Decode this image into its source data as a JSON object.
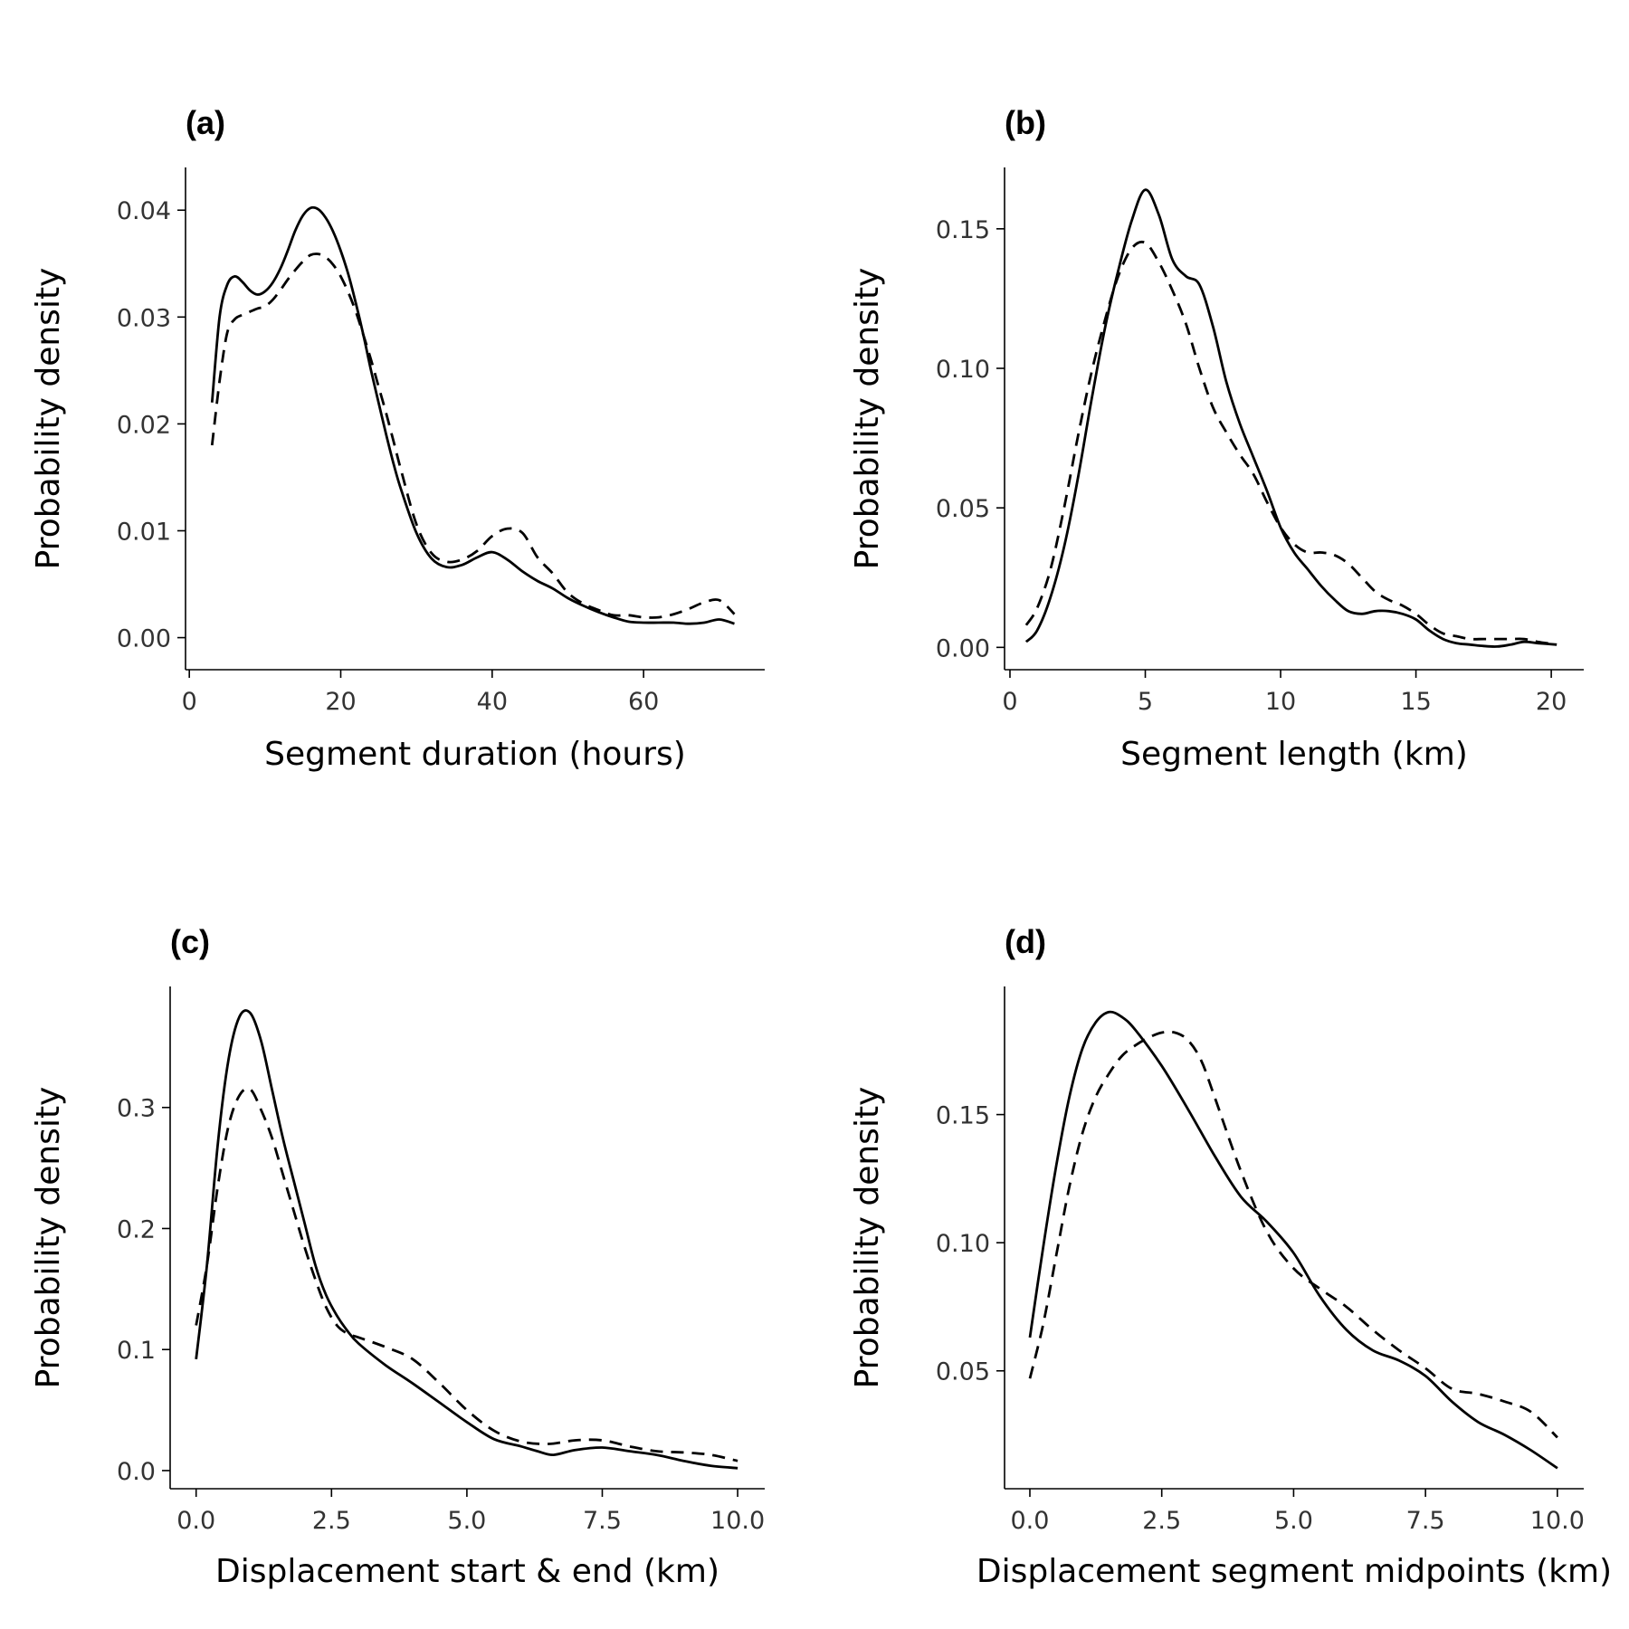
{
  "chart_data": [
    {
      "type": "line",
      "panel_label": "(a)",
      "xlabel": "Segment duration (hours)",
      "ylabel": "Probability density",
      "xlim": [
        -0.5,
        76
      ],
      "ylim": [
        -0.003,
        0.044
      ],
      "xticks": [
        0,
        20,
        40,
        60
      ],
      "xtick_labels": [
        "0",
        "20",
        "40",
        "60"
      ],
      "yticks": [
        0,
        0.01,
        0.02,
        0.03,
        0.04
      ],
      "ytick_labels": [
        "0.00",
        "0.01",
        "0.02",
        "0.03",
        "0.04"
      ],
      "legend": "none",
      "grid": false,
      "series": [
        {
          "style": "solid",
          "x": [
            3,
            4,
            5,
            6,
            7,
            8,
            9,
            10,
            11,
            12,
            13,
            14,
            15,
            16,
            17,
            18,
            19,
            20,
            21,
            22,
            23,
            24,
            25,
            26,
            27,
            28,
            30,
            32,
            34,
            36,
            38,
            40,
            42,
            44,
            46,
            48,
            50,
            52,
            54,
            56,
            58,
            60,
            62,
            64,
            66,
            68,
            70,
            72
          ],
          "y": [
            0.022,
            0.03,
            0.033,
            0.0338,
            0.0333,
            0.0325,
            0.0321,
            0.0324,
            0.0332,
            0.0345,
            0.0362,
            0.0381,
            0.0395,
            0.0402,
            0.0401,
            0.0393,
            0.038,
            0.0362,
            0.034,
            0.0313,
            0.0283,
            0.025,
            0.022,
            0.019,
            0.0162,
            0.0138,
            0.0098,
            0.0074,
            0.0066,
            0.0068,
            0.0075,
            0.008,
            0.0073,
            0.0062,
            0.0053,
            0.0046,
            0.0037,
            0.003,
            0.0024,
            0.0019,
            0.0015,
            0.0014,
            0.0014,
            0.0014,
            0.0013,
            0.0014,
            0.0017,
            0.0013
          ]
        },
        {
          "style": "dashed",
          "x": [
            3,
            4,
            5,
            6,
            7,
            8,
            9,
            10,
            11,
            12,
            13,
            14,
            15,
            16,
            17,
            18,
            19,
            20,
            21,
            22,
            23,
            24,
            25,
            26,
            27,
            28,
            30,
            32,
            34,
            36,
            38,
            40,
            42,
            44,
            46,
            48,
            50,
            52,
            54,
            56,
            58,
            60,
            62,
            64,
            66,
            68,
            70,
            72
          ],
          "y": [
            0.018,
            0.024,
            0.0285,
            0.0298,
            0.0302,
            0.0305,
            0.0308,
            0.031,
            0.0316,
            0.0325,
            0.0335,
            0.0344,
            0.0352,
            0.0358,
            0.0359,
            0.0356,
            0.0349,
            0.0338,
            0.0323,
            0.0305,
            0.0283,
            0.026,
            0.0235,
            0.021,
            0.0183,
            0.0156,
            0.0106,
            0.0079,
            0.0071,
            0.0073,
            0.0081,
            0.0095,
            0.0102,
            0.0098,
            0.0075,
            0.006,
            0.0042,
            0.0032,
            0.0026,
            0.0021,
            0.0021,
            0.0019,
            0.0019,
            0.0022,
            0.0027,
            0.0033,
            0.0035,
            0.0022
          ]
        }
      ]
    },
    {
      "type": "line",
      "panel_label": "(b)",
      "xlabel": "Segment length (km)",
      "ylabel": "Probability density",
      "xlim": [
        -0.2,
        21.2
      ],
      "ylim": [
        -0.008,
        0.172
      ],
      "xticks": [
        0,
        5,
        10,
        15,
        20
      ],
      "xtick_labels": [
        "0",
        "5",
        "10",
        "15",
        "20"
      ],
      "yticks": [
        0,
        0.05,
        0.1,
        0.15
      ],
      "ytick_labels": [
        "0.00",
        "0.05",
        "0.10",
        "0.15"
      ],
      "legend": "none",
      "grid": false,
      "series": [
        {
          "style": "solid",
          "x": [
            0.6,
            1,
            1.5,
            2,
            2.5,
            3,
            3.5,
            4,
            4.5,
            5,
            5.5,
            6,
            6.5,
            7,
            7.5,
            8,
            8.5,
            9,
            9.5,
            10,
            10.5,
            11,
            11.5,
            12,
            12.5,
            13,
            13.5,
            14,
            14.5,
            15,
            15.5,
            16,
            16.5,
            17,
            17.5,
            18,
            18.5,
            19,
            19.5,
            20.2
          ],
          "y": [
            0.002,
            0.006,
            0.018,
            0.036,
            0.06,
            0.088,
            0.114,
            0.135,
            0.153,
            0.164,
            0.155,
            0.139,
            0.133,
            0.13,
            0.115,
            0.095,
            0.08,
            0.068,
            0.056,
            0.043,
            0.034,
            0.028,
            0.022,
            0.017,
            0.013,
            0.012,
            0.013,
            0.013,
            0.012,
            0.01,
            0.006,
            0.003,
            0.0015,
            0.001,
            0.0005,
            0.0003,
            0.001,
            0.002,
            0.0015,
            0.001
          ]
        },
        {
          "style": "dashed",
          "x": [
            0.6,
            1,
            1.5,
            2,
            2.5,
            3,
            3.5,
            4,
            4.5,
            5,
            5.5,
            6,
            6.5,
            7,
            7.5,
            8,
            8.5,
            9,
            9.5,
            10,
            10.5,
            11,
            11.5,
            12,
            12.5,
            13,
            13.5,
            14,
            14.5,
            15,
            15.5,
            16,
            16.5,
            17,
            17.5,
            18,
            18.5,
            19,
            19.5,
            20.2
          ],
          "y": [
            0.008,
            0.014,
            0.028,
            0.05,
            0.075,
            0.098,
            0.117,
            0.133,
            0.143,
            0.145,
            0.138,
            0.128,
            0.116,
            0.1,
            0.086,
            0.077,
            0.069,
            0.062,
            0.052,
            0.043,
            0.037,
            0.034,
            0.034,
            0.033,
            0.03,
            0.025,
            0.02,
            0.017,
            0.015,
            0.012,
            0.008,
            0.005,
            0.004,
            0.003,
            0.003,
            0.003,
            0.003,
            0.003,
            0.002,
            0.001
          ]
        }
      ]
    },
    {
      "type": "line",
      "panel_label": "(c)",
      "xlabel": "Displacement start & end (km)",
      "ylabel": "Probability density",
      "xlim": [
        -0.48,
        10.5
      ],
      "ylim": [
        -0.015,
        0.4
      ],
      "xticks": [
        0,
        2.5,
        5,
        7.5,
        10
      ],
      "xtick_labels": [
        "0.0",
        "2.5",
        "5.0",
        "7.5",
        "10.0"
      ],
      "yticks": [
        0,
        0.1,
        0.2,
        0.3
      ],
      "ytick_labels": [
        "0.0",
        "0.1",
        "0.2",
        "0.3"
      ],
      "legend": "none",
      "grid": false,
      "series": [
        {
          "style": "solid",
          "x": [
            0,
            0.2,
            0.4,
            0.6,
            0.8,
            1,
            1.2,
            1.4,
            1.6,
            1.8,
            2,
            2.2,
            2.4,
            2.6,
            2.8,
            3,
            3.5,
            4,
            4.5,
            5,
            5.5,
            6,
            6.3,
            6.6,
            7,
            7.5,
            8,
            8.5,
            9,
            9.5,
            10
          ],
          "y": [
            0.092,
            0.17,
            0.27,
            0.34,
            0.375,
            0.378,
            0.355,
            0.315,
            0.275,
            0.24,
            0.205,
            0.17,
            0.145,
            0.128,
            0.115,
            0.105,
            0.087,
            0.072,
            0.056,
            0.04,
            0.026,
            0.02,
            0.016,
            0.013,
            0.017,
            0.019,
            0.016,
            0.013,
            0.008,
            0.004,
            0.002
          ]
        },
        {
          "style": "dashed",
          "x": [
            0,
            0.2,
            0.4,
            0.6,
            0.8,
            1,
            1.2,
            1.4,
            1.6,
            1.8,
            2,
            2.2,
            2.4,
            2.6,
            2.8,
            3,
            3.5,
            4,
            4.5,
            5,
            5.5,
            6,
            6.5,
            7,
            7.5,
            8,
            8.5,
            9,
            9.5,
            10
          ],
          "y": [
            0.12,
            0.17,
            0.235,
            0.285,
            0.31,
            0.315,
            0.298,
            0.275,
            0.245,
            0.215,
            0.185,
            0.158,
            0.135,
            0.12,
            0.113,
            0.11,
            0.102,
            0.092,
            0.072,
            0.05,
            0.033,
            0.024,
            0.022,
            0.025,
            0.025,
            0.02,
            0.016,
            0.015,
            0.013,
            0.008
          ]
        }
      ]
    },
    {
      "type": "line",
      "panel_label": "(d)",
      "xlabel": "Displacement segment midpoints (km)",
      "ylabel": "Probability density",
      "xlim": [
        -0.48,
        10.5
      ],
      "ylim": [
        0.004,
        0.2
      ],
      "xticks": [
        0,
        2.5,
        5,
        7.5,
        10
      ],
      "xtick_labels": [
        "0.0",
        "2.5",
        "5.0",
        "7.5",
        "10.0"
      ],
      "yticks": [
        0.05,
        0.1,
        0.15
      ],
      "ytick_labels": [
        "0.05",
        "0.10",
        "0.15"
      ],
      "legend": "none",
      "grid": false,
      "series": [
        {
          "style": "solid",
          "x": [
            0,
            0.25,
            0.5,
            0.75,
            1,
            1.25,
            1.5,
            1.75,
            2,
            2.5,
            3,
            3.5,
            4,
            4.5,
            5,
            5.5,
            6,
            6.5,
            7,
            7.5,
            8,
            8.5,
            9,
            9.5,
            10
          ],
          "y": [
            0.063,
            0.098,
            0.13,
            0.157,
            0.176,
            0.186,
            0.19,
            0.188,
            0.183,
            0.169,
            0.152,
            0.134,
            0.118,
            0.108,
            0.096,
            0.079,
            0.066,
            0.058,
            0.054,
            0.048,
            0.038,
            0.03,
            0.025,
            0.019,
            0.012
          ]
        },
        {
          "style": "dashed",
          "x": [
            0,
            0.25,
            0.5,
            0.75,
            1,
            1.25,
            1.5,
            1.75,
            2,
            2.25,
            2.5,
            2.75,
            3,
            3.25,
            3.5,
            4,
            4.5,
            5,
            5.5,
            6,
            6.5,
            7,
            7.5,
            8,
            8.5,
            9,
            9.5,
            10
          ],
          "y": [
            0.047,
            0.068,
            0.095,
            0.122,
            0.143,
            0.157,
            0.166,
            0.173,
            0.177,
            0.18,
            0.182,
            0.182,
            0.179,
            0.171,
            0.157,
            0.128,
            0.104,
            0.09,
            0.082,
            0.075,
            0.066,
            0.058,
            0.051,
            0.043,
            0.041,
            0.038,
            0.034,
            0.024
          ]
        }
      ]
    }
  ]
}
